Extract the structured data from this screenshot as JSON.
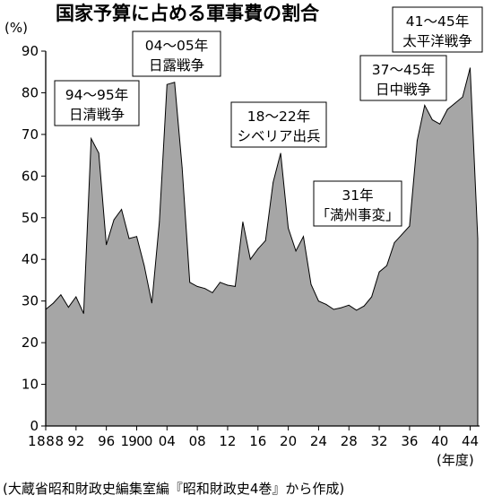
{
  "chart_data": {
    "type": "area",
    "title": "国家予算に占める軍事費の割合",
    "ylabel": "(%)",
    "xlabel": "(年度)",
    "source": "(大蔵省昭和財政史編集室編『昭和財政史4巻』から作成)",
    "ylim": [
      0,
      90
    ],
    "xlim": [
      1888,
      1945
    ],
    "yticks": [
      "0",
      "10",
      "20",
      "30",
      "40",
      "50",
      "60",
      "70",
      "80",
      "90"
    ],
    "xticks": [
      {
        "year": 1888,
        "label": "1888"
      },
      {
        "year": 1892,
        "label": "92"
      },
      {
        "year": 1896,
        "label": "96"
      },
      {
        "year": 1900,
        "label": "1900"
      },
      {
        "year": 1904,
        "label": "04"
      },
      {
        "year": 1908,
        "label": "08"
      },
      {
        "year": 1912,
        "label": "12"
      },
      {
        "year": 1916,
        "label": "16"
      },
      {
        "year": 1920,
        "label": "20"
      },
      {
        "year": 1924,
        "label": "24"
      },
      {
        "year": 1928,
        "label": "28"
      },
      {
        "year": 1932,
        "label": "32"
      },
      {
        "year": 1936,
        "label": "36"
      },
      {
        "year": 1940,
        "label": "40"
      },
      {
        "year": 1944,
        "label": "44"
      }
    ],
    "grid": false,
    "fill": "#a6a6a6",
    "x": [
      1888,
      1889,
      1890,
      1891,
      1892,
      1893,
      1894,
      1895,
      1896,
      1897,
      1898,
      1899,
      1900,
      1901,
      1902,
      1903,
      1904,
      1905,
      1906,
      1907,
      1908,
      1909,
      1910,
      1911,
      1912,
      1913,
      1914,
      1915,
      1916,
      1917,
      1918,
      1919,
      1920,
      1921,
      1922,
      1923,
      1924,
      1925,
      1926,
      1927,
      1928,
      1929,
      1930,
      1931,
      1932,
      1933,
      1934,
      1935,
      1936,
      1937,
      1938,
      1939,
      1940,
      1941,
      1942,
      1943,
      1944,
      1945
    ],
    "values": [
      28,
      29.5,
      31.5,
      28.5,
      31,
      27,
      69,
      65.5,
      43.5,
      49.5,
      52,
      45,
      45.5,
      38.5,
      29.5,
      49,
      82,
      82.5,
      62,
      34.5,
      33.5,
      33,
      32,
      34.5,
      33.8,
      33.5,
      49,
      40,
      42.5,
      44.5,
      58.5,
      65.5,
      47.5,
      42,
      45.5,
      34,
      30,
      29.2,
      28,
      28.4,
      29,
      27.8,
      28.8,
      31,
      37,
      38.5,
      44,
      46,
      48,
      68.5,
      77,
      73.5,
      72.5,
      76,
      77.5,
      79,
      86,
      45
    ],
    "annotations": [
      {
        "id": "sino-japanese-war",
        "year_label": "94〜95年",
        "event": "日清戦争"
      },
      {
        "id": "russo-japanese-war",
        "year_label": "04〜05年",
        "event": "日露戦争"
      },
      {
        "id": "siberian-intervention",
        "year_label": "18〜22年",
        "event": "シベリア出兵"
      },
      {
        "id": "manchurian-incident",
        "year_label": "31年",
        "event": "「満州事変」"
      },
      {
        "id": "second-sino-japanese-war",
        "year_label": "37〜45年",
        "event": "日中戦争"
      },
      {
        "id": "pacific-war",
        "year_label": "41〜45年",
        "event": "太平洋戦争"
      }
    ]
  }
}
